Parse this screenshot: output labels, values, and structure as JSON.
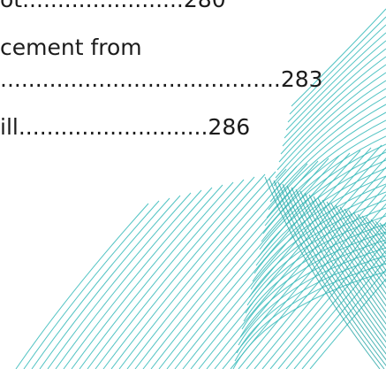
{
  "toc": {
    "entries": [
      {
        "text": "ot.",
        "dots": "......................",
        "page": "280"
      },
      {
        "text": "cement from",
        "dots": "",
        "page": ""
      },
      {
        "text": "",
        "dots": "........................................",
        "page": "283"
      },
      {
        "text": "ill.",
        "dots": "..........................",
        "page": "286"
      }
    ]
  },
  "colors": {
    "accent_teal": "#3fbdbd",
    "accent_light": "#8fd8d8",
    "text": "#1c1c1c"
  }
}
